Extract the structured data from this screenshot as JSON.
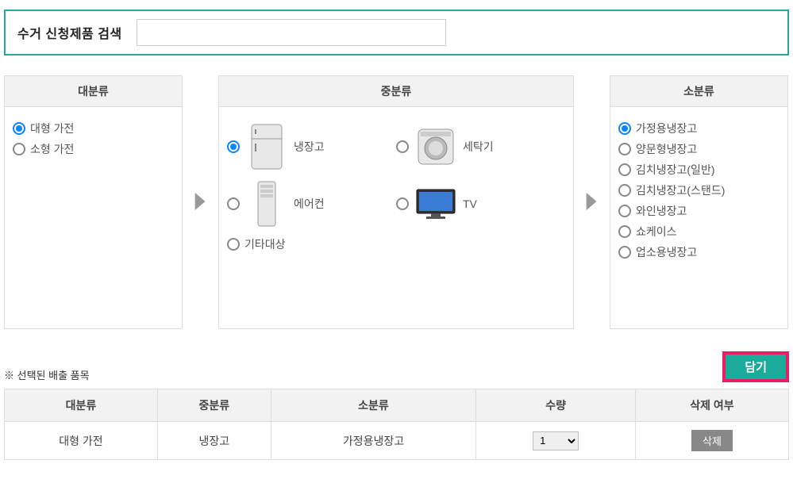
{
  "search": {
    "label": "수거 신청제품 검색",
    "value": ""
  },
  "panels": {
    "major": {
      "title": "대분류"
    },
    "mid": {
      "title": "중분류"
    },
    "sub": {
      "title": "소분류"
    }
  },
  "major_items": [
    {
      "label": "대형 가전",
      "checked": true
    },
    {
      "label": "소형 가전",
      "checked": false
    }
  ],
  "mid_items": [
    {
      "label": "냉장고",
      "icon": "refrigerator",
      "checked": true
    },
    {
      "label": "세탁기",
      "icon": "washer",
      "checked": false
    },
    {
      "label": "에어컨",
      "icon": "aircon",
      "checked": false
    },
    {
      "label": "TV",
      "icon": "tv",
      "checked": false
    },
    {
      "label": "기타대상",
      "icon": "",
      "checked": false
    }
  ],
  "sub_items": [
    {
      "label": "가정용냉장고",
      "checked": true
    },
    {
      "label": "양문형냉장고",
      "checked": false
    },
    {
      "label": "김치냉장고(일반)",
      "checked": false
    },
    {
      "label": "김치냉장고(스탠드)",
      "checked": false
    },
    {
      "label": "와인냉장고",
      "checked": false
    },
    {
      "label": "쇼케이스",
      "checked": false
    },
    {
      "label": "업소용냉장고",
      "checked": false
    }
  ],
  "selected_section": {
    "label": "※ 선택된 배출 품목",
    "add_button": "담기"
  },
  "table": {
    "headers": [
      "대분류",
      "중분류",
      "소분류",
      "수량",
      "삭제 여부"
    ],
    "rows": [
      {
        "major": "대형 가전",
        "mid": "냉장고",
        "sub": "가정용냉장고",
        "qty": "1",
        "delete_label": "삭제"
      }
    ]
  },
  "colors": {
    "teal": "#26a69a",
    "teal_btn": "#1aab9b",
    "pink_border": "#e91e63",
    "radio_blue": "#0a84ff",
    "header_bg": "#f2f2f2",
    "border": "#dddddd"
  }
}
